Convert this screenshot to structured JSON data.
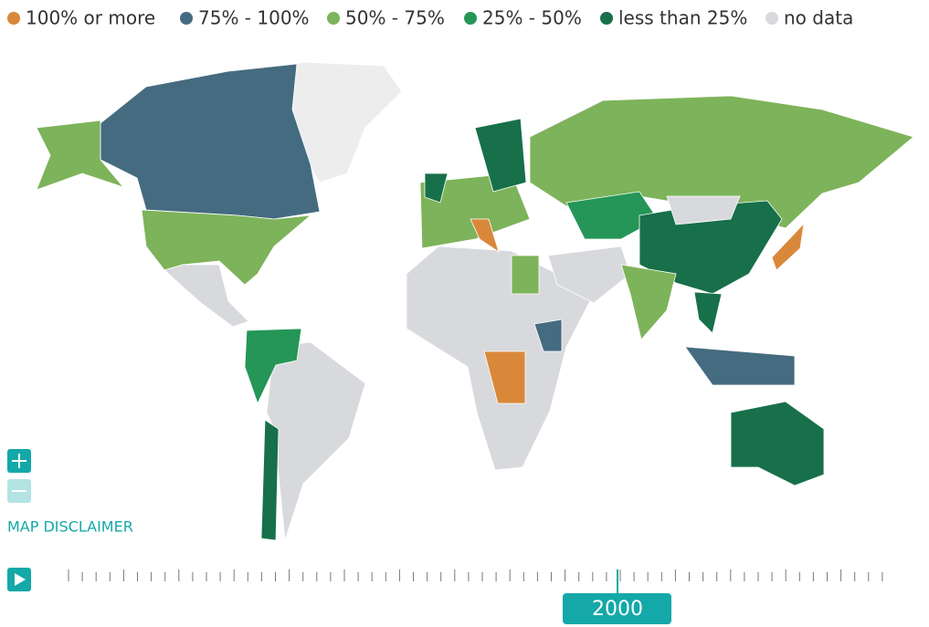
{
  "legend": [
    {
      "label": "100% or more",
      "color": "#d9883a"
    },
    {
      "label": "75% - 100%",
      "color": "#456b80"
    },
    {
      "label": "50% - 75%",
      "color": "#7db35a"
    },
    {
      "label": "25% - 50%",
      "color": "#259657"
    },
    {
      "label": "less than 25%",
      "color": "#17704a"
    },
    {
      "label": "no data",
      "color": "#d8d9dc"
    }
  ],
  "disclaimer": "MAP DISCLAIMER",
  "year": "2000"
}
